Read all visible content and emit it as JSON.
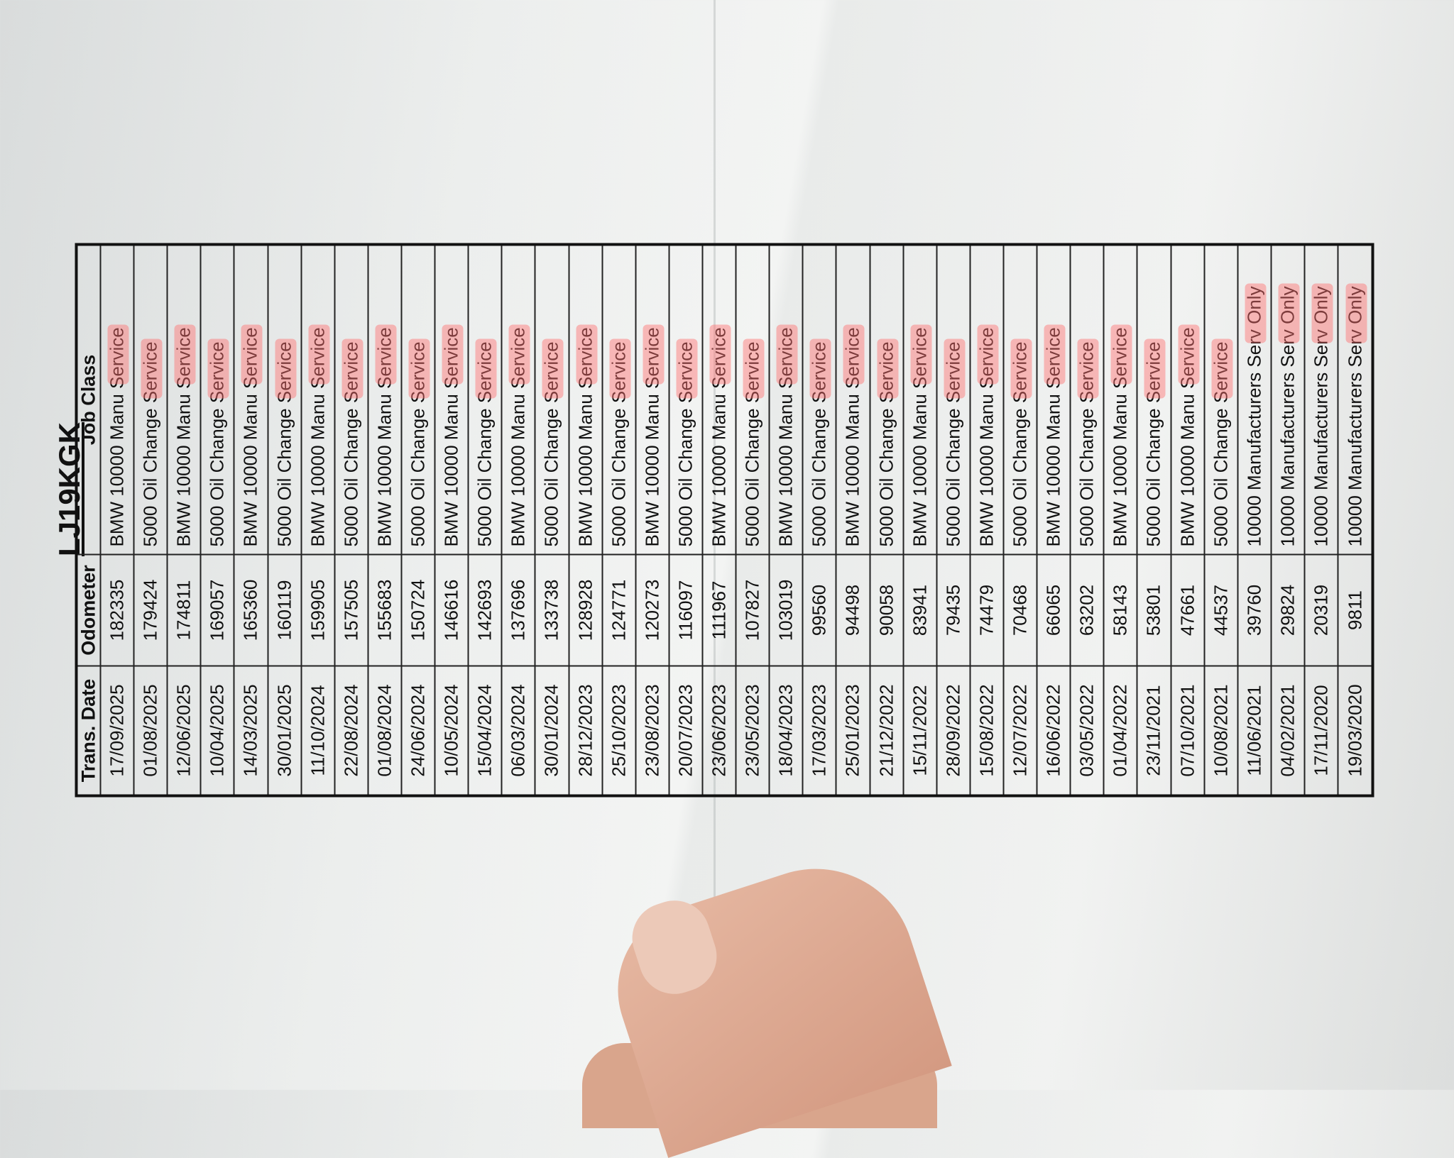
{
  "document": {
    "title": "LJ19KGK",
    "headers": {
      "date": "Trans. Date",
      "odometer": "Odometer",
      "job": "Job Class"
    },
    "highlight_color": "#ff6e6e",
    "rows": [
      {
        "date": "17/09/2025",
        "odometer": "182335",
        "job": "BMW 10000 Manu Service"
      },
      {
        "date": "01/08/2025",
        "odometer": "179424",
        "job": "5000 Oil Change Service"
      },
      {
        "date": "12/06/2025",
        "odometer": "174811",
        "job": "BMW 10000 Manu Service"
      },
      {
        "date": "10/04/2025",
        "odometer": "169057",
        "job": "5000 Oil Change Service"
      },
      {
        "date": "14/03/2025",
        "odometer": "165360",
        "job": "BMW 10000 Manu Service"
      },
      {
        "date": "30/01/2025",
        "odometer": "160119",
        "job": "5000 Oil Change Service"
      },
      {
        "date": "11/10/2024",
        "odometer": "159905",
        "job": "BMW 10000 Manu Service"
      },
      {
        "date": "22/08/2024",
        "odometer": "157505",
        "job": "5000 Oil Change Service"
      },
      {
        "date": "01/08/2024",
        "odometer": "155683",
        "job": "BMW 10000 Manu Service"
      },
      {
        "date": "24/06/2024",
        "odometer": "150724",
        "job": "5000 Oil Change Service"
      },
      {
        "date": "10/05/2024",
        "odometer": "146616",
        "job": "BMW 10000 Manu Service"
      },
      {
        "date": "15/04/2024",
        "odometer": "142693",
        "job": "5000 Oil Change Service"
      },
      {
        "date": "06/03/2024",
        "odometer": "137696",
        "job": "BMW 10000 Manu Service"
      },
      {
        "date": "30/01/2024",
        "odometer": "133738",
        "job": "5000 Oil Change Service"
      },
      {
        "date": "28/12/2023",
        "odometer": "128928",
        "job": "BMW 10000 Manu Service"
      },
      {
        "date": "25/10/2023",
        "odometer": "124771",
        "job": "5000 Oil Change Service"
      },
      {
        "date": "23/08/2023",
        "odometer": "120273",
        "job": "BMW 10000 Manu Service"
      },
      {
        "date": "20/07/2023",
        "odometer": "116097",
        "job": "5000 Oil Change Service"
      },
      {
        "date": "23/06/2023",
        "odometer": "111967",
        "job": "BMW 10000 Manu Service"
      },
      {
        "date": "23/05/2023",
        "odometer": "107827",
        "job": "5000 Oil Change Service"
      },
      {
        "date": "18/04/2023",
        "odometer": "103019",
        "job": "BMW 10000 Manu Service"
      },
      {
        "date": "17/03/2023",
        "odometer": "99560",
        "job": "5000 Oil Change Service"
      },
      {
        "date": "25/01/2023",
        "odometer": "94498",
        "job": "BMW 10000 Manu Service"
      },
      {
        "date": "21/12/2022",
        "odometer": "90058",
        "job": "5000 Oil Change Service"
      },
      {
        "date": "15/11/2022",
        "odometer": "83941",
        "job": "BMW 10000 Manu Service"
      },
      {
        "date": "28/09/2022",
        "odometer": "79435",
        "job": "5000 Oil Change Service"
      },
      {
        "date": "15/08/2022",
        "odometer": "74479",
        "job": "BMW 10000 Manu Service"
      },
      {
        "date": "12/07/2022",
        "odometer": "70468",
        "job": "5000 Oil Change Service"
      },
      {
        "date": "16/06/2022",
        "odometer": "66065",
        "job": "BMW 10000 Manu Service"
      },
      {
        "date": "03/05/2022",
        "odometer": "63202",
        "job": "5000 Oil Change Service"
      },
      {
        "date": "01/04/2022",
        "odometer": "58143",
        "job": "BMW 10000 Manu Service"
      },
      {
        "date": "23/11/2021",
        "odometer": "53801",
        "job": "5000 Oil Change Service"
      },
      {
        "date": "07/10/2021",
        "odometer": "47661",
        "job": "BMW 10000 Manu Service"
      },
      {
        "date": "10/08/2021",
        "odometer": "44537",
        "job": "5000 Oil Change Service"
      },
      {
        "date": "11/06/2021",
        "odometer": "39760",
        "job": "10000 Manufacturers Serv Only"
      },
      {
        "date": "04/02/2021",
        "odometer": "29824",
        "job": "10000 Manufacturers Serv Only"
      },
      {
        "date": "17/11/2020",
        "odometer": "20319",
        "job": "10000 Manufacturers Serv Only"
      },
      {
        "date": "19/03/2020",
        "odometer": "9811",
        "job": "10000 Manufacturers Serv Only"
      }
    ]
  }
}
